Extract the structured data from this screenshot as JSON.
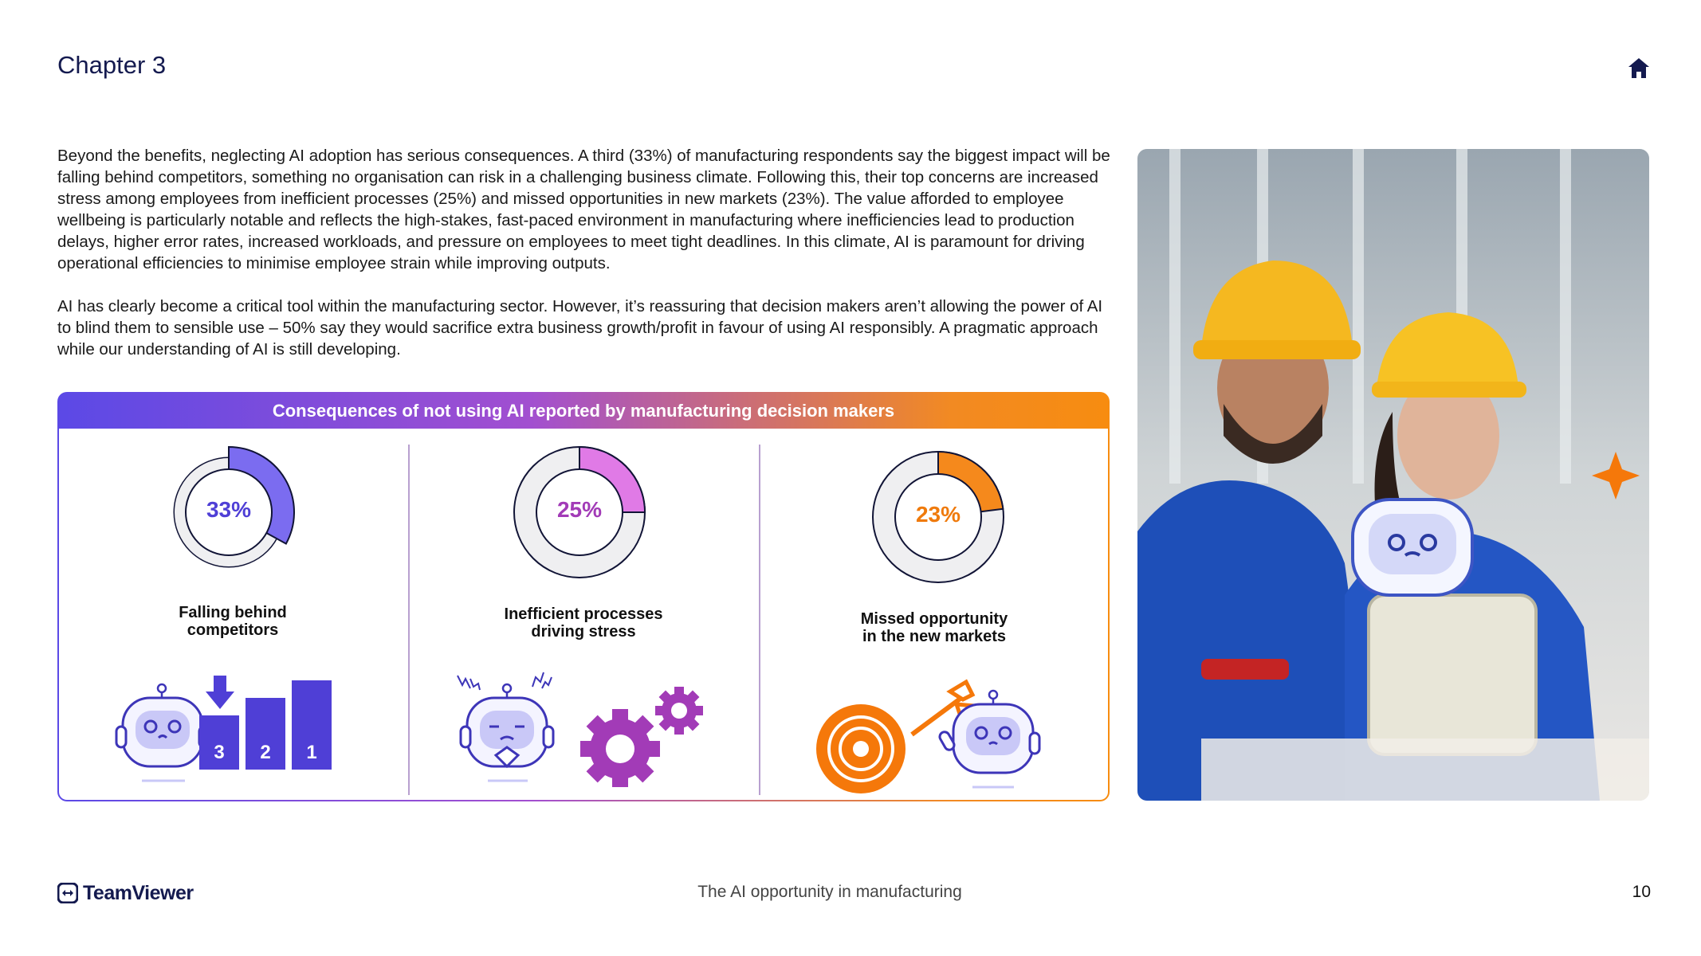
{
  "header": {
    "chapter": "Chapter 3",
    "home_icon": "home-icon"
  },
  "body": {
    "paragraph1": "Beyond the benefits, neglecting AI adoption has serious consequences. A third (33%) of manufacturing respondents say the biggest impact will be falling behind competitors, something no organisation can risk in a challenging business climate. Following this, their top concerns are increased stress among employees from inefficient processes (25%) and missed opportunities in new markets (23%). The value afforded to employee wellbeing is particularly notable and reflects the high-stakes, fast-paced environment in manufacturing where inefficiencies lead to production delays, higher error rates, increased workloads, and pressure on employees to meet tight deadlines. In this climate, AI is paramount for driving operational efficiencies to minimise employee strain while improving outputs.",
    "paragraph2": "AI has clearly become a critical tool within the manufacturing sector. However, it’s reassuring that decision makers aren’t allowing the power of AI to blind them to sensible use – 50% say they would sacrifice extra business growth/profit in favour of using AI responsibly. A pragmatic approach while our understanding of AI is still developing."
  },
  "infographic": {
    "title": "Consequences of not using AI reported by manufacturing decision makers",
    "items": [
      {
        "value": 33,
        "label": "33%",
        "caption_line1": "Falling behind",
        "caption_line2": "competitors",
        "color": "#7b6cf0",
        "text_color": "#4f3fd6"
      },
      {
        "value": 25,
        "label": "25%",
        "caption_line1": "Inefficient processes",
        "caption_line2": "driving stress",
        "color": "#e07ae6",
        "text_color": "#a23bb7"
      },
      {
        "value": 23,
        "label": "23%",
        "caption_line1": "Missed opportunity",
        "caption_line2": "in the new markets",
        "color": "#f5891c",
        "text_color": "#ef7a0c"
      }
    ],
    "podium": [
      "3",
      "2",
      "1"
    ]
  },
  "footer": {
    "brand": "TeamViewer",
    "title": "The AI opportunity in manufacturing",
    "page": "10"
  }
}
